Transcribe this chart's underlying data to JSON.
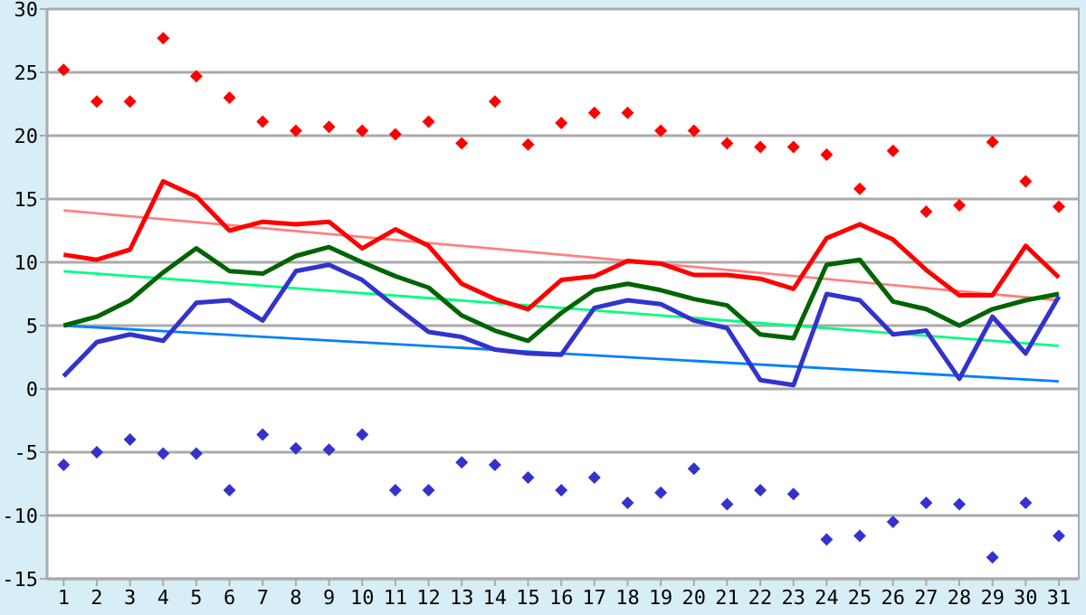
{
  "chart_data": {
    "type": "line",
    "x": [
      1,
      2,
      3,
      4,
      5,
      6,
      7,
      8,
      9,
      10,
      11,
      12,
      13,
      14,
      15,
      16,
      17,
      18,
      19,
      20,
      21,
      22,
      23,
      24,
      25,
      26,
      27,
      28,
      29,
      30,
      31
    ],
    "xlim": [
      0.5,
      31.6
    ],
    "xticks": [
      1,
      2,
      3,
      4,
      5,
      6,
      7,
      8,
      9,
      10,
      11,
      12,
      13,
      14,
      15,
      16,
      17,
      18,
      19,
      20,
      21,
      22,
      23,
      24,
      25,
      26,
      27,
      28,
      29,
      30,
      31
    ],
    "ylim": [
      -15,
      30
    ],
    "yticks": [
      -15,
      -10,
      -5,
      0,
      5,
      10,
      15,
      20,
      25,
      30
    ],
    "grid": "y",
    "series": [
      {
        "color": "#ff8080",
        "x": [
          1,
          16,
          31
        ],
        "values": [
          14.1,
          10.6,
          7.0
        ]
      },
      {
        "color": "#00ff80",
        "x": [
          1,
          16,
          31
        ],
        "values": [
          9.3,
          6.4,
          3.4
        ]
      },
      {
        "color": "#0080ff",
        "x": [
          1,
          16,
          31
        ],
        "values": [
          5.0,
          2.8,
          0.6
        ]
      },
      {
        "color": "#ff0000",
        "values": [
          10.6,
          10.2,
          11.0,
          16.4,
          15.2,
          12.5,
          13.2,
          13.0,
          13.2,
          11.1,
          12.6,
          11.3,
          8.3,
          7.1,
          6.3,
          8.6,
          8.9,
          10.1,
          9.9,
          9.0,
          9.0,
          8.7,
          7.9,
          11.9,
          13.0,
          11.8,
          9.4,
          7.4,
          7.4,
          11.3,
          8.8
        ]
      },
      {
        "color": "#006400",
        "values": [
          5.0,
          5.7,
          7.0,
          9.2,
          11.1,
          9.3,
          9.1,
          10.5,
          11.2,
          10.0,
          8.9,
          8.0,
          5.8,
          4.6,
          3.8,
          6.0,
          7.8,
          8.3,
          7.8,
          7.1,
          6.6,
          4.3,
          4.0,
          9.8,
          10.2,
          6.9,
          6.3,
          5.0,
          6.3,
          7.0,
          7.5
        ]
      },
      {
        "color": "#3333cc",
        "values": [
          1.0,
          3.7,
          4.3,
          3.8,
          6.8,
          7.0,
          5.4,
          9.3,
          9.8,
          8.6,
          6.5,
          4.5,
          4.1,
          3.1,
          2.8,
          2.7,
          6.4,
          7.0,
          6.7,
          5.4,
          4.8,
          0.7,
          0.3,
          7.5,
          7.0,
          4.3,
          4.6,
          0.8,
          5.7,
          2.8,
          7.3
        ]
      },
      {
        "type": "scatter",
        "marker": "diamond",
        "color": "#ff0000",
        "values": [
          25.2,
          22.7,
          22.7,
          27.7,
          24.7,
          23.0,
          21.1,
          20.4,
          20.7,
          20.4,
          20.1,
          21.1,
          19.4,
          22.7,
          19.3,
          21.0,
          21.8,
          21.8,
          20.4,
          20.4,
          19.4,
          19.1,
          19.1,
          18.5,
          15.8,
          18.8,
          14.0,
          14.5,
          19.5,
          16.4,
          14.4
        ]
      },
      {
        "type": "scatter",
        "marker": "diamond",
        "color": "#3333cc",
        "values": [
          -6.0,
          -5.0,
          -4.0,
          -5.1,
          -5.1,
          -8.0,
          -3.6,
          -4.7,
          -4.8,
          -3.6,
          -8.0,
          -8.0,
          -5.8,
          -6.0,
          -7.0,
          -8.0,
          -7.0,
          -9.0,
          -8.2,
          -6.3,
          -9.1,
          -8.0,
          -8.3,
          -11.9,
          -11.6,
          -10.5,
          -9.0,
          -9.1,
          -13.3,
          -9.0,
          -11.6
        ]
      }
    ]
  }
}
